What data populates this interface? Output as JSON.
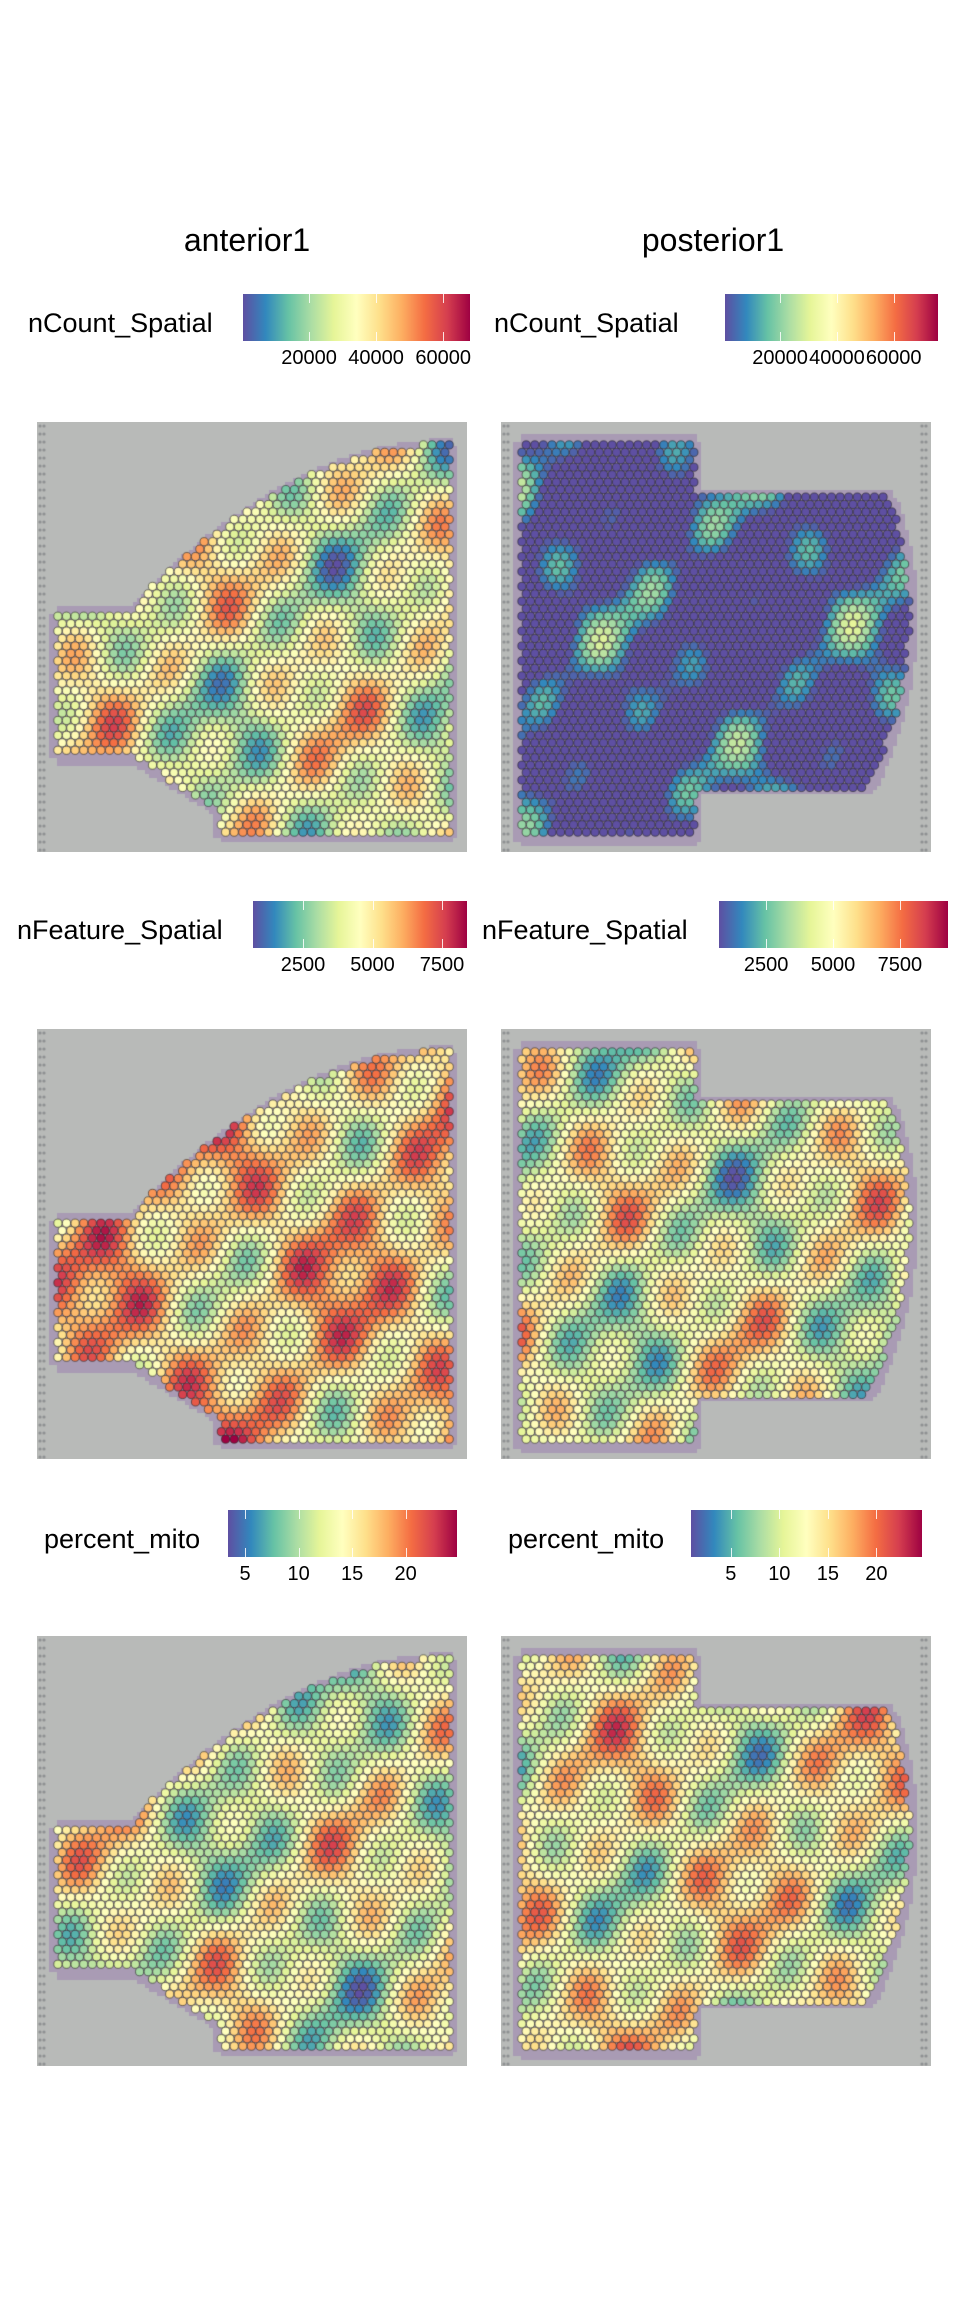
{
  "palette": [
    "#5E4FA2",
    "#3288BD",
    "#66C2A5",
    "#ABDDA4",
    "#E6F598",
    "#FFFFBF",
    "#FEE08B",
    "#FDAE61",
    "#F46D43",
    "#D53E4F",
    "#9E0142"
  ],
  "background_color": "#B8BAB8",
  "tissue_color": "#9C82B0",
  "chart_data": {
    "type": "heatmap",
    "columns": [
      "anterior1",
      "posterior1"
    ],
    "rows": [
      {
        "feature": "nCount_Spatial",
        "panels": [
          {
            "sample": "anterior1",
            "legend_title": "nCount_Spatial",
            "range": [
              300,
              68000
            ],
            "ticks": [
              20000,
              40000,
              60000
            ],
            "tick_labels": [
              "20000",
              "40000",
              "60000"
            ]
          },
          {
            "sample": "posterior1",
            "legend_title": "nCount_Spatial",
            "range": [
              600,
              75600
            ],
            "ticks": [
              20000,
              40000,
              60000
            ],
            "tick_labels": [
              "20000",
              "40000",
              "60000"
            ]
          }
        ]
      },
      {
        "feature": "nFeature_Spatial",
        "panels": [
          {
            "sample": "anterior1",
            "legend_title": "nFeature_Spatial",
            "range": [
              700,
              8400
            ],
            "ticks": [
              2500,
              5000,
              7500
            ],
            "tick_labels": [
              "2500",
              "5000",
              "7500"
            ]
          },
          {
            "sample": "posterior1",
            "legend_title": "nFeature_Spatial",
            "range": [
              740,
              9300
            ],
            "ticks": [
              2500,
              5000,
              7500
            ],
            "tick_labels": [
              "2500",
              "5000",
              "7500"
            ]
          }
        ]
      },
      {
        "feature": "percent_mito",
        "panels": [
          {
            "sample": "anterior1",
            "legend_title": "percent_mito",
            "range": [
              3.4,
              24.8
            ],
            "ticks": [
              5,
              10,
              15,
              20
            ],
            "tick_labels": [
              "5",
              "10",
              "15",
              "20"
            ]
          },
          {
            "sample": "posterior1",
            "legend_title": "percent_mito",
            "range": [
              0.9,
              24.7
            ],
            "ticks": [
              5,
              10,
              15,
              20
            ],
            "tick_labels": [
              "5",
              "10",
              "15",
              "20"
            ]
          }
        ]
      }
    ],
    "legend_placement": "top",
    "grid": false
  }
}
